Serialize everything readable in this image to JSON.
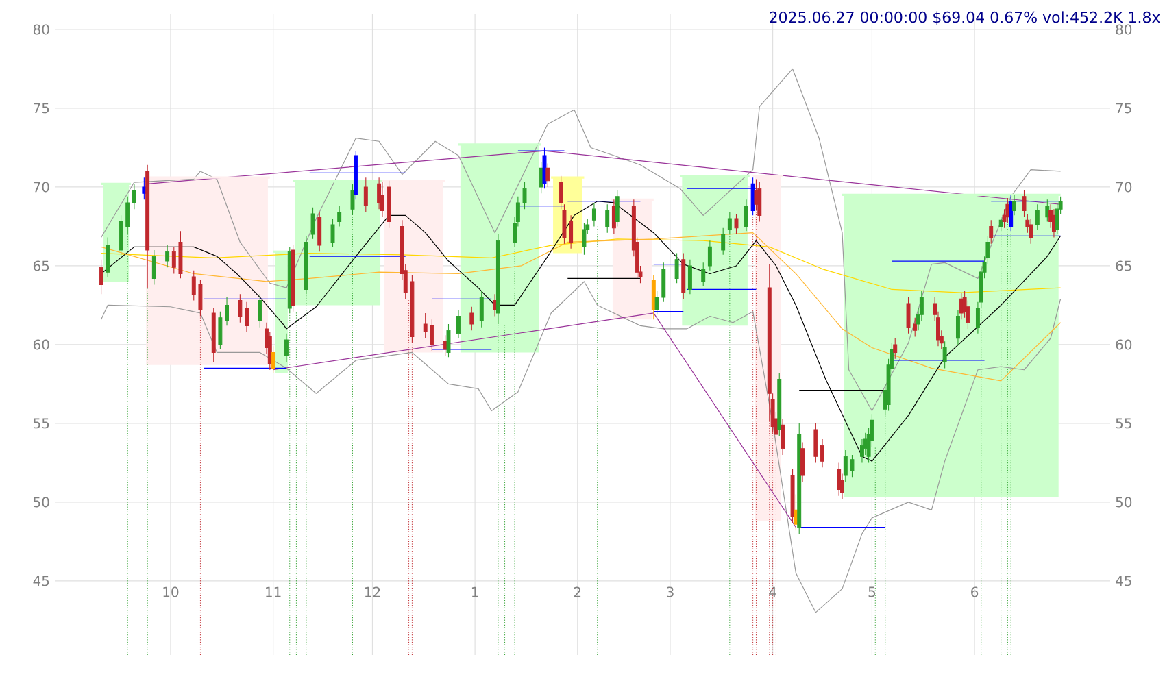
{
  "chart_data": {
    "type": "candlestick",
    "title": "2025.06.27 00:00:00 $69.04 0.67% vol:452.2K 1.8x",
    "xlim": [
      "2024-08-27",
      "2025-07-12"
    ],
    "ylim": [
      40.3,
      81
    ],
    "y2lim": [
      40.3,
      81
    ],
    "xticks": [
      {
        "value": "2024-10-01",
        "label": "10"
      },
      {
        "value": "2024-11-01",
        "label": "11"
      },
      {
        "value": "2024-12-01",
        "label": "12"
      },
      {
        "value": "2025-01-01",
        "label": "1"
      },
      {
        "value": "2025-02-01",
        "label": "2"
      },
      {
        "value": "2025-03-01",
        "label": "3"
      },
      {
        "value": "2025-04-01",
        "label": "4"
      },
      {
        "value": "2025-05-01",
        "label": "5"
      },
      {
        "value": "2025-06-01",
        "label": "6"
      }
    ],
    "yticks": [
      45,
      50,
      55,
      60,
      65,
      70,
      75,
      80
    ],
    "y2ticks": [
      45,
      50,
      55,
      60,
      65,
      70,
      75,
      80
    ],
    "grid": true,
    "x": [
      "2024-09-10",
      "2024-09-12",
      "2024-09-16",
      "2024-09-18",
      "2024-09-20",
      "2024-09-23",
      "2024-09-24",
      "2024-09-26",
      "2024-09-30",
      "2024-10-02",
      "2024-10-04",
      "2024-10-08",
      "2024-10-10",
      "2024-10-14",
      "2024-10-16",
      "2024-10-18",
      "2024-10-22",
      "2024-10-24",
      "2024-10-28",
      "2024-10-30",
      "2024-10-31",
      "2024-11-01",
      "2024-11-05",
      "2024-11-06",
      "2024-11-07",
      "2024-11-11",
      "2024-11-13",
      "2024-11-15",
      "2024-11-19",
      "2024-11-21",
      "2024-11-25",
      "2024-11-26",
      "2024-11-29",
      "2024-12-03",
      "2024-12-04",
      "2024-12-06",
      "2024-12-10",
      "2024-12-11",
      "2024-12-13",
      "2024-12-17",
      "2024-12-19",
      "2024-12-23",
      "2024-12-24",
      "2024-12-27",
      "2024-12-31",
      "2025-01-03",
      "2025-01-07",
      "2025-01-08",
      "2025-01-13",
      "2025-01-14",
      "2025-01-16",
      "2025-01-21",
      "2025-01-22",
      "2025-01-23",
      "2025-01-27",
      "2025-01-28",
      "2025-01-30",
      "2025-02-03",
      "2025-02-04",
      "2025-02-06",
      "2025-02-10",
      "2025-02-12",
      "2025-02-13",
      "2025-02-18",
      "2025-02-19",
      "2025-02-20",
      "2025-02-24",
      "2025-02-25",
      "2025-02-27",
      "2025-03-03",
      "2025-03-05",
      "2025-03-07",
      "2025-03-11",
      "2025-03-13",
      "2025-03-17",
      "2025-03-19",
      "2025-03-21",
      "2025-03-24",
      "2025-03-26",
      "2025-03-27",
      "2025-03-28",
      "2025-03-31",
      "2025-04-01",
      "2025-04-02",
      "2025-04-03",
      "2025-04-04",
      "2025-04-07",
      "2025-04-08",
      "2025-04-09",
      "2025-04-10",
      "2025-04-14",
      "2025-04-16",
      "2025-04-21",
      "2025-04-22",
      "2025-04-23",
      "2025-04-25",
      "2025-04-28",
      "2025-04-29",
      "2025-04-30",
      "2025-05-01",
      "2025-05-05",
      "2025-05-06",
      "2025-05-07",
      "2025-05-08",
      "2025-05-12",
      "2025-05-14",
      "2025-05-15",
      "2025-05-16",
      "2025-05-20",
      "2025-05-21",
      "2025-05-22",
      "2025-05-23",
      "2025-05-27",
      "2025-05-28",
      "2025-05-29",
      "2025-05-30",
      "2025-06-02",
      "2025-06-03",
      "2025-06-04",
      "2025-06-05",
      "2025-06-06",
      "2025-06-09",
      "2025-06-10",
      "2025-06-11",
      "2025-06-12",
      "2025-06-13",
      "2025-06-16",
      "2025-06-17",
      "2025-06-18",
      "2025-06-20",
      "2025-06-23",
      "2025-06-24",
      "2025-06-25",
      "2025-06-26",
      "2025-06-27"
    ],
    "ohlc": [
      [
        64.9,
        65.4,
        63.2,
        63.8
      ],
      [
        64.6,
        66.8,
        64.3,
        66.3
      ],
      [
        66.0,
        68.2,
        65.6,
        67.8
      ],
      [
        67.5,
        69.4,
        67.0,
        69.0
      ],
      [
        69.0,
        70.2,
        68.6,
        69.8
      ],
      [
        69.6,
        70.6,
        69.2,
        70.0
      ],
      [
        71.0,
        71.4,
        63.6,
        66.0
      ],
      [
        64.2,
        66.0,
        63.8,
        65.6
      ],
      [
        65.3,
        66.3,
        64.9,
        65.9
      ],
      [
        65.9,
        66.2,
        64.5,
        64.9
      ],
      [
        66.5,
        67.2,
        64.2,
        64.5
      ],
      [
        64.3,
        64.7,
        62.8,
        63.2
      ],
      [
        63.8,
        64.1,
        61.8,
        62.2
      ],
      [
        62.0,
        62.3,
        58.9,
        59.5
      ],
      [
        60.0,
        62.1,
        59.7,
        61.7
      ],
      [
        61.5,
        63.0,
        61.2,
        62.5
      ],
      [
        62.8,
        63.2,
        61.4,
        61.8
      ],
      [
        62.3,
        62.7,
        60.8,
        61.2
      ],
      [
        61.5,
        63.2,
        61.1,
        62.8
      ],
      [
        61.0,
        61.4,
        59.4,
        59.8
      ],
      [
        60.5,
        60.8,
        58.4,
        58.8
      ],
      [
        58.5,
        59.9,
        58.2,
        59.5
      ],
      [
        59.3,
        60.7,
        58.9,
        60.3
      ],
      [
        62.3,
        66.2,
        62.0,
        65.9
      ],
      [
        66.0,
        66.3,
        62.1,
        62.5
      ],
      [
        63.5,
        66.9,
        63.2,
        66.5
      ],
      [
        67.0,
        68.7,
        66.7,
        68.3
      ],
      [
        68.1,
        68.4,
        65.9,
        66.3
      ],
      [
        66.5,
        68.0,
        66.2,
        67.6
      ],
      [
        67.8,
        68.8,
        67.5,
        68.4
      ],
      [
        68.6,
        70.2,
        68.3,
        69.8
      ],
      [
        69.5,
        72.3,
        69.2,
        72.0
      ],
      [
        70.0,
        70.6,
        68.4,
        68.8
      ],
      [
        70.2,
        70.6,
        68.6,
        69.0
      ],
      [
        69.5,
        70.3,
        68.1,
        68.5
      ],
      [
        70.0,
        70.4,
        67.4,
        67.8
      ],
      [
        67.5,
        67.9,
        64.1,
        64.5
      ],
      [
        64.7,
        65.1,
        62.9,
        63.3
      ],
      [
        64.0,
        64.4,
        60.1,
        60.5
      ],
      [
        61.3,
        62.0,
        60.4,
        60.8
      ],
      [
        61.2,
        61.6,
        59.6,
        60.0
      ],
      [
        60.2,
        60.6,
        59.3,
        59.7
      ],
      [
        59.5,
        61.3,
        59.2,
        60.9
      ],
      [
        60.7,
        62.2,
        60.4,
        61.8
      ],
      [
        62.0,
        62.4,
        60.9,
        61.3
      ],
      [
        61.5,
        63.4,
        61.1,
        63.0
      ],
      [
        62.8,
        63.2,
        61.8,
        62.2
      ],
      [
        62.0,
        67.0,
        61.3,
        66.6
      ],
      [
        66.5,
        68.1,
        66.2,
        67.7
      ],
      [
        67.8,
        69.4,
        67.5,
        69.0
      ],
      [
        69.0,
        70.3,
        68.6,
        69.9
      ],
      [
        70.0,
        71.6,
        69.6,
        71.2
      ],
      [
        70.2,
        72.5,
        69.9,
        72.0
      ],
      [
        71.2,
        71.5,
        70.0,
        70.4
      ],
      [
        70.3,
        70.7,
        68.6,
        69.0
      ],
      [
        68.5,
        68.9,
        66.4,
        66.8
      ],
      [
        67.8,
        68.2,
        66.1,
        66.5
      ],
      [
        66.2,
        67.7,
        65.7,
        67.3
      ],
      [
        67.3,
        68.0,
        67.0,
        67.6
      ],
      [
        67.9,
        69.0,
        67.5,
        68.6
      ],
      [
        67.5,
        68.9,
        67.1,
        68.5
      ],
      [
        68.8,
        69.2,
        67.0,
        67.4
      ],
      [
        67.8,
        69.8,
        67.5,
        69.4
      ],
      [
        68.8,
        69.2,
        65.6,
        66.0
      ],
      [
        66.5,
        66.8,
        64.2,
        64.6
      ],
      [
        64.6,
        65.0,
        63.9,
        64.3
      ],
      [
        64.1,
        64.4,
        61.6,
        62.2
      ],
      [
        62.2,
        63.4,
        61.9,
        63.0
      ],
      [
        63.0,
        65.2,
        62.7,
        64.8
      ],
      [
        64.2,
        65.8,
        63.9,
        65.4
      ],
      [
        65.4,
        65.8,
        62.9,
        63.3
      ],
      [
        63.5,
        65.4,
        63.2,
        65.0
      ],
      [
        64.0,
        65.2,
        63.7,
        64.8
      ],
      [
        65.0,
        66.6,
        64.7,
        66.2
      ],
      [
        66.0,
        67.4,
        65.7,
        67.0
      ],
      [
        67.3,
        68.4,
        67.0,
        68.0
      ],
      [
        68.0,
        68.3,
        67.0,
        67.4
      ],
      [
        67.5,
        69.2,
        67.2,
        68.8
      ],
      [
        68.5,
        70.6,
        68.2,
        70.2
      ],
      [
        69.8,
        70.5,
        68.5,
        68.9
      ],
      [
        69.9,
        70.3,
        67.8,
        68.2
      ],
      [
        63.6,
        65.1,
        55.1,
        56.9
      ],
      [
        56.5,
        56.9,
        54.4,
        54.8
      ],
      [
        55.3,
        55.7,
        53.9,
        54.3
      ],
      [
        54.6,
        58.2,
        54.2,
        57.8
      ],
      [
        54.9,
        55.3,
        53.0,
        53.4
      ],
      [
        51.7,
        52.1,
        48.7,
        49.1
      ],
      [
        49.5,
        50.5,
        48.2,
        48.6
      ],
      [
        48.4,
        55.0,
        48.0,
        54.3
      ],
      [
        53.4,
        53.8,
        51.3,
        51.7
      ],
      [
        54.6,
        55.0,
        52.5,
        52.9
      ],
      [
        53.6,
        54.0,
        52.2,
        52.6
      ],
      [
        52.1,
        52.5,
        50.4,
        50.8
      ],
      [
        51.4,
        51.8,
        50.2,
        50.6
      ],
      [
        51.7,
        53.3,
        51.3,
        52.9
      ],
      [
        52.0,
        53.0,
        51.6,
        52.7
      ],
      [
        52.9,
        54.0,
        52.5,
        53.6
      ],
      [
        53.4,
        54.4,
        53.0,
        54.0
      ],
      [
        52.9,
        54.7,
        52.5,
        54.3
      ],
      [
        53.9,
        55.6,
        53.5,
        55.2
      ],
      [
        55.9,
        57.5,
        55.5,
        57.1
      ],
      [
        56.2,
        59.1,
        55.8,
        58.7
      ],
      [
        58.5,
        60.1,
        58.1,
        59.7
      ],
      [
        60.0,
        60.4,
        59.1,
        59.5
      ],
      [
        62.6,
        63.0,
        60.7,
        61.1
      ],
      [
        61.3,
        61.7,
        60.5,
        60.9
      ],
      [
        61.3,
        62.3,
        60.9,
        61.9
      ],
      [
        61.9,
        63.4,
        61.5,
        63.0
      ],
      [
        62.6,
        63.0,
        61.5,
        61.9
      ],
      [
        61.7,
        62.1,
        59.9,
        60.3
      ],
      [
        60.5,
        60.9,
        59.7,
        60.1
      ],
      [
        58.9,
        60.2,
        58.5,
        59.8
      ],
      [
        60.4,
        62.2,
        60.0,
        61.8
      ],
      [
        62.9,
        63.3,
        61.6,
        62.0
      ],
      [
        63.0,
        63.4,
        61.7,
        62.1
      ],
      [
        62.4,
        62.8,
        61.0,
        61.4
      ],
      [
        61.1,
        62.7,
        60.7,
        62.3
      ],
      [
        62.7,
        65.0,
        62.3,
        64.6
      ],
      [
        64.6,
        65.6,
        64.2,
        65.2
      ],
      [
        65.5,
        66.9,
        65.1,
        66.5
      ],
      [
        67.5,
        67.9,
        66.4,
        66.8
      ],
      [
        67.5,
        68.1,
        67.2,
        67.9
      ],
      [
        68.2,
        68.6,
        67.4,
        67.8
      ],
      [
        68.9,
        69.3,
        67.7,
        68.1
      ],
      [
        67.5,
        69.5,
        67.2,
        69.1
      ],
      [
        68.5,
        69.5,
        68.2,
        69.1
      ],
      [
        69.4,
        69.8,
        68.1,
        68.5
      ],
      [
        67.9,
        68.3,
        67.1,
        67.5
      ],
      [
        67.6,
        68.0,
        66.4,
        66.8
      ],
      [
        67.6,
        68.9,
        67.3,
        68.5
      ],
      [
        68.1,
        69.2,
        67.8,
        68.8
      ],
      [
        68.5,
        68.9,
        67.4,
        67.8
      ],
      [
        68.2,
        68.6,
        66.8,
        67.2
      ],
      [
        67.3,
        69.0,
        67.0,
        68.6
      ],
      [
        68.6,
        69.4,
        68.3,
        69.1
      ]
    ],
    "colors": [
      "#c0282d",
      "#2ca02c",
      "#2ca02c",
      "#2ca02c",
      "#2ca02c",
      "#0000ff",
      "#c0282d",
      "#2ca02c",
      "#2ca02c",
      "#c0282d",
      "#c0282d",
      "#c0282d",
      "#c0282d",
      "#c0282d",
      "#2ca02c",
      "#2ca02c",
      "#c0282d",
      "#c0282d",
      "#2ca02c",
      "#c0282d",
      "#c0282d",
      "#ffa500",
      "#2ca02c",
      "#2ca02c",
      "#c0282d",
      "#2ca02c",
      "#2ca02c",
      "#c0282d",
      "#2ca02c",
      "#2ca02c",
      "#2ca02c",
      "#0000ff",
      "#c0282d",
      "#c0282d",
      "#c0282d",
      "#c0282d",
      "#c0282d",
      "#c0282d",
      "#c0282d",
      "#c0282d",
      "#c0282d",
      "#c0282d",
      "#2ca02c",
      "#2ca02c",
      "#c0282d",
      "#2ca02c",
      "#c0282d",
      "#2ca02c",
      "#2ca02c",
      "#2ca02c",
      "#2ca02c",
      "#2ca02c",
      "#0000ff",
      "#c0282d",
      "#c0282d",
      "#c0282d",
      "#c0282d",
      "#2ca02c",
      "#2ca02c",
      "#2ca02c",
      "#2ca02c",
      "#c0282d",
      "#2ca02c",
      "#c0282d",
      "#c0282d",
      "#c0282d",
      "#ffa500",
      "#2ca02c",
      "#2ca02c",
      "#2ca02c",
      "#c0282d",
      "#2ca02c",
      "#2ca02c",
      "#2ca02c",
      "#2ca02c",
      "#2ca02c",
      "#c0282d",
      "#2ca02c",
      "#0000ff",
      "#c0282d",
      "#c0282d",
      "#c0282d",
      "#c0282d",
      "#c0282d",
      "#2ca02c",
      "#c0282d",
      "#c0282d",
      "#ffa500",
      "#2ca02c",
      "#c0282d",
      "#c0282d",
      "#c0282d",
      "#c0282d",
      "#c0282d",
      "#2ca02c",
      "#2ca02c",
      "#2ca02c",
      "#2ca02c",
      "#2ca02c",
      "#2ca02c",
      "#2ca02c",
      "#2ca02c",
      "#2ca02c",
      "#c0282d",
      "#c0282d",
      "#c0282d",
      "#2ca02c",
      "#2ca02c",
      "#c0282d",
      "#c0282d",
      "#c0282d",
      "#2ca02c",
      "#2ca02c",
      "#c0282d",
      "#c0282d",
      "#c0282d",
      "#2ca02c",
      "#2ca02c",
      "#2ca02c",
      "#2ca02c",
      "#c0282d",
      "#2ca02c",
      "#c0282d",
      "#c0282d",
      "#0000ff",
      "#2ca02c",
      "#c0282d",
      "#c0282d",
      "#c0282d",
      "#2ca02c",
      "#2ca02c",
      "#c0282d",
      "#c0282d",
      "#2ca02c",
      "#2ca02c"
    ],
    "series": [
      {
        "type": "line",
        "color": "#ccffcc",
        "x": [
          "2024-09-10",
          "2024-09-19"
        ],
        "values": [
          70.2,
          70.2
        ],
        "lower": [
          64.0,
          64.0
        ],
        "upper": [
          70.2,
          70.2
        ]
      },
      {
        "type": "line",
        "color": "#ffeeee",
        "x": [
          "2024-09-23",
          "2024-10-31"
        ],
        "values": [
          70.6,
          70.6
        ],
        "lower": [
          58.7,
          58.7
        ],
        "upper": [
          70.6,
          70.6
        ]
      },
      {
        "type": "line",
        "color": "#ccffcc",
        "x": [
          "2024-11-01",
          "2024-11-06"
        ],
        "values": [
          65.9,
          65.9
        ],
        "lower": [
          58.2,
          58.2
        ],
        "upper": [
          65.9,
          65.9
        ]
      },
      {
        "type": "line",
        "color": "#ccffcc",
        "x": [
          "2024-11-07",
          "2024-12-04"
        ],
        "values": [
          70.4,
          70.4
        ],
        "lower": [
          62.5,
          62.5
        ],
        "upper": [
          70.4,
          70.4
        ]
      },
      {
        "type": "line",
        "color": "#ffeeee",
        "x": [
          "2024-12-04",
          "2024-12-23"
        ],
        "values": [
          70.4,
          70.4
        ],
        "lower": [
          59.5,
          59.5
        ],
        "upper": [
          70.4,
          70.4
        ]
      },
      {
        "type": "line",
        "color": "#ccffcc",
        "x": [
          "2024-12-27",
          "2025-01-21"
        ],
        "values": [
          72.7,
          72.7
        ],
        "lower": [
          59.5,
          59.5
        ],
        "upper": [
          72.7,
          72.7
        ]
      },
      {
        "type": "line",
        "color": "#ffff99",
        "x": [
          "2025-01-24",
          "2025-02-03"
        ],
        "values": [
          70.6,
          70.6
        ],
        "lower": [
          65.8,
          65.8
        ],
        "upper": [
          70.6,
          70.6
        ]
      },
      {
        "type": "line",
        "color": "#ffeeee",
        "x": [
          "2025-02-11",
          "2025-02-24"
        ],
        "values": [
          69.2,
          69.2
        ],
        "lower": [
          61.6,
          61.6
        ],
        "upper": [
          69.2,
          69.2
        ]
      },
      {
        "type": "line",
        "color": "#ccffcc",
        "x": [
          "2025-03-04",
          "2025-03-25"
        ],
        "values": [
          70.7,
          70.7
        ],
        "lower": [
          61.2,
          61.2
        ],
        "upper": [
          70.7,
          70.7
        ]
      },
      {
        "type": "line",
        "color": "#ffeeee",
        "x": [
          "2025-03-26",
          "2025-04-04"
        ],
        "values": [
          70.7,
          70.7
        ],
        "lower": [
          48.8,
          48.8
        ],
        "upper": [
          70.7,
          70.7
        ]
      },
      {
        "type": "line",
        "color": "#ccffcc",
        "x": [
          "2025-04-22",
          "2025-06-27"
        ],
        "values": [
          69.5,
          69.5
        ],
        "lower": [
          50.3,
          50.3
        ],
        "upper": [
          69.5,
          69.5
        ]
      },
      {
        "type": "line",
        "color": "#999999",
        "x": [
          "2024-09-10",
          "2024-09-20",
          "2024-10-08",
          "2024-10-10",
          "2024-10-15",
          "2024-10-22",
          "2024-10-31",
          "2024-11-05",
          "2024-11-14",
          "2024-11-26",
          "2024-12-03",
          "2024-12-10",
          "2024-12-20",
          "2024-12-27",
          "2025-01-07",
          "2025-01-23",
          "2025-01-31",
          "2025-02-05",
          "2025-02-12",
          "2025-02-20",
          "2025-03-04",
          "2025-03-11",
          "2025-03-26",
          "2025-03-28",
          "2025-04-07",
          "2025-04-15",
          "2025-04-22",
          "2025-04-24",
          "2025-05-01",
          "2025-05-12",
          "2025-05-19",
          "2025-05-23",
          "2025-06-02",
          "2025-06-12",
          "2025-06-18",
          "2025-06-27"
        ],
        "values": [
          66.8,
          70.3,
          70.5,
          71.0,
          70.5,
          66.5,
          63.9,
          63.6,
          68.0,
          73.1,
          72.9,
          70.8,
          72.9,
          72.0,
          67.1,
          74.0,
          74.9,
          72.5,
          72.0,
          71.4,
          69.9,
          68.2,
          71.1,
          75.1,
          77.5,
          73.1,
          67.1,
          58.4,
          55.8,
          60.1,
          65.1,
          65.2,
          64.2,
          69.4,
          71.1,
          71.0
        ]
      },
      {
        "type": "line",
        "color": "#999999",
        "x": [
          "2024-09-10",
          "2024-09-12",
          "2024-10-01",
          "2024-10-10",
          "2024-10-15",
          "2024-10-28",
          "2024-11-01",
          "2024-11-05",
          "2024-11-14",
          "2024-11-26",
          "2024-12-13",
          "2024-12-24",
          "2025-01-02",
          "2025-01-06",
          "2025-01-14",
          "2025-01-24",
          "2025-02-03",
          "2025-02-07",
          "2025-02-20",
          "2025-02-27",
          "2025-03-06",
          "2025-03-13",
          "2025-03-20",
          "2025-03-26",
          "2025-04-01",
          "2025-04-08",
          "2025-04-14",
          "2025-04-22",
          "2025-04-28",
          "2025-05-01",
          "2025-05-12",
          "2025-05-19",
          "2025-05-23",
          "2025-06-02",
          "2025-06-09",
          "2025-06-16",
          "2025-06-24",
          "2025-06-27"
        ],
        "values": [
          61.6,
          62.5,
          62.4,
          62.0,
          59.5,
          59.5,
          59.0,
          58.5,
          56.9,
          59.0,
          59.5,
          57.5,
          57.2,
          55.8,
          57.0,
          62.0,
          64.0,
          62.5,
          61.2,
          61.0,
          61.0,
          61.8,
          61.4,
          62.1,
          55.0,
          45.5,
          43.0,
          44.5,
          48.0,
          49.0,
          50.0,
          49.5,
          52.6,
          58.4,
          58.6,
          58.4,
          60.4,
          62.9
        ]
      },
      {
        "type": "line",
        "color": "#ffd700",
        "x": [
          "2024-09-10",
          "2024-10-14",
          "2024-11-12",
          "2024-12-10",
          "2025-01-06",
          "2025-01-24",
          "2025-02-13",
          "2025-03-11",
          "2025-03-31",
          "2025-04-16",
          "2025-05-07",
          "2025-05-28",
          "2025-06-27"
        ],
        "values": [
          65.8,
          65.5,
          65.8,
          65.7,
          65.5,
          66.3,
          66.7,
          66.6,
          66.2,
          64.8,
          63.5,
          63.3,
          63.6
        ]
      },
      {
        "type": "line",
        "color": "#ffb733",
        "x": [
          "2024-09-10",
          "2024-10-08",
          "2024-10-30",
          "2024-11-12",
          "2024-12-03",
          "2024-12-27",
          "2025-01-15",
          "2025-01-29",
          "2025-02-24",
          "2025-03-26",
          "2025-04-08",
          "2025-04-22",
          "2025-05-01",
          "2025-05-19",
          "2025-06-09",
          "2025-06-27"
        ],
        "values": [
          66.2,
          64.5,
          64.0,
          64.2,
          64.6,
          64.5,
          65.0,
          66.5,
          66.7,
          67.1,
          64.5,
          61.0,
          59.8,
          58.5,
          57.7,
          61.4
        ]
      },
      {
        "type": "line",
        "color": "#000000",
        "x": [
          "2024-09-10",
          "2024-09-20",
          "2024-10-08",
          "2024-10-15",
          "2024-10-21",
          "2024-10-28",
          "2024-11-04",
          "2024-11-05",
          "2024-11-14",
          "2024-11-26",
          "2024-12-06",
          "2024-12-11",
          "2024-12-17",
          "2024-12-24",
          "2025-01-02",
          "2025-01-07",
          "2025-01-13",
          "2025-01-23",
          "2025-01-31",
          "2025-02-07",
          "2025-02-12",
          "2025-02-24",
          "2025-03-05",
          "2025-03-13",
          "2025-03-21",
          "2025-03-27",
          "2025-04-02",
          "2025-04-08",
          "2025-04-17",
          "2025-04-28",
          "2025-05-01",
          "2025-05-12",
          "2025-05-23",
          "2025-06-09",
          "2025-06-23",
          "2025-06-27"
        ],
        "values": [
          64.5,
          66.2,
          66.2,
          65.6,
          64.5,
          63.0,
          61.3,
          61.0,
          62.4,
          65.6,
          68.2,
          68.2,
          67.1,
          65.3,
          63.6,
          62.5,
          62.5,
          65.6,
          68.2,
          69.1,
          69.0,
          67.1,
          65.1,
          64.5,
          65.0,
          66.6,
          65.0,
          62.5,
          57.8,
          52.9,
          52.6,
          55.5,
          59.2,
          62.5,
          65.6,
          66.9
        ]
      },
      {
        "type": "line",
        "color": "#993399",
        "x": [
          "2024-09-24",
          "2025-01-22",
          "2025-06-27"
        ],
        "values": [
          70.2,
          72.3,
          68.9
        ]
      },
      {
        "type": "line",
        "color": "#993399",
        "x": [
          "2024-11-01",
          "2025-02-24",
          "2025-04-08"
        ],
        "values": [
          58.4,
          62.0,
          48.4
        ]
      },
      {
        "type": "line",
        "color": "#0000ff",
        "x": [
          "2024-10-11",
          "2024-11-05"
        ],
        "values": [
          62.9,
          62.9
        ]
      },
      {
        "type": "line",
        "color": "#0000ff",
        "x": [
          "2024-10-11",
          "2024-11-05"
        ],
        "values": [
          58.5,
          58.5
        ]
      },
      {
        "type": "line",
        "color": "#0000ff",
        "x": [
          "2024-11-12",
          "2024-12-11"
        ],
        "values": [
          70.9,
          70.9
        ]
      },
      {
        "type": "line",
        "color": "#0000ff",
        "x": [
          "2024-11-12",
          "2024-12-11"
        ],
        "values": [
          65.6,
          65.6
        ]
      },
      {
        "type": "line",
        "color": "#0000ff",
        "x": [
          "2024-12-19",
          "2025-01-06"
        ],
        "values": [
          62.9,
          62.9
        ]
      },
      {
        "type": "line",
        "color": "#0000ff",
        "x": [
          "2024-12-19",
          "2025-01-06"
        ],
        "values": [
          59.7,
          59.7
        ]
      },
      {
        "type": "line",
        "color": "#0000ff",
        "x": [
          "2025-01-14",
          "2025-01-28"
        ],
        "values": [
          72.3,
          72.3
        ]
      },
      {
        "type": "line",
        "color": "#0000ff",
        "x": [
          "2025-01-14",
          "2025-01-28"
        ],
        "values": [
          68.8,
          68.8
        ]
      },
      {
        "type": "line",
        "color": "#0000ff",
        "x": [
          "2025-01-29",
          "2025-02-20"
        ],
        "values": [
          69.1,
          69.1
        ]
      },
      {
        "type": "line",
        "color": "#000000",
        "x": [
          "2025-01-29",
          "2025-02-20"
        ],
        "values": [
          64.2,
          64.2
        ]
      },
      {
        "type": "line",
        "color": "#0000ff",
        "x": [
          "2025-02-24",
          "2025-03-05"
        ],
        "values": [
          65.1,
          65.1
        ]
      },
      {
        "type": "line",
        "color": "#0000ff",
        "x": [
          "2025-02-24",
          "2025-03-05"
        ],
        "values": [
          62.1,
          62.1
        ]
      },
      {
        "type": "line",
        "color": "#0000ff",
        "x": [
          "2025-03-06",
          "2025-03-27"
        ],
        "values": [
          69.9,
          69.9
        ]
      },
      {
        "type": "line",
        "color": "#0000ff",
        "x": [
          "2025-03-06",
          "2025-03-27"
        ],
        "values": [
          63.5,
          63.5
        ]
      },
      {
        "type": "line",
        "color": "#000000",
        "x": [
          "2025-04-09",
          "2025-05-05"
        ],
        "values": [
          57.1,
          57.1
        ]
      },
      {
        "type": "line",
        "color": "#0000ff",
        "x": [
          "2025-04-09",
          "2025-05-05"
        ],
        "values": [
          48.4,
          48.4
        ]
      },
      {
        "type": "line",
        "color": "#0000ff",
        "x": [
          "2025-05-07",
          "2025-06-04"
        ],
        "values": [
          65.3,
          65.3
        ]
      },
      {
        "type": "line",
        "color": "#0000ff",
        "x": [
          "2025-05-07",
          "2025-06-04"
        ],
        "values": [
          59.0,
          59.0
        ]
      },
      {
        "type": "line",
        "color": "#0000ff",
        "x": [
          "2025-06-06",
          "2025-06-27"
        ],
        "values": [
          69.1,
          69.1
        ]
      },
      {
        "type": "line",
        "color": "#0000ff",
        "x": [
          "2025-06-06",
          "2025-06-27"
        ],
        "values": [
          66.9,
          66.9
        ]
      }
    ],
    "ref_lines": [
      {
        "axis": "x",
        "value": "2024-09-18",
        "color": "#2ca02c",
        "line_style": "dotted"
      },
      {
        "axis": "x",
        "value": "2024-09-24",
        "color": "#2ca02c",
        "line_style": "dotted"
      },
      {
        "axis": "x",
        "value": "2024-10-10",
        "color": "#c0282d",
        "line_style": "dotted"
      },
      {
        "axis": "x",
        "value": "2024-11-06",
        "color": "#2ca02c",
        "line_style": "dotted"
      },
      {
        "axis": "x",
        "value": "2024-11-08",
        "color": "#2ca02c",
        "line_style": "dotted"
      },
      {
        "axis": "x",
        "value": "2024-11-11",
        "color": "#2ca02c",
        "line_style": "dotted"
      },
      {
        "axis": "x",
        "value": "2024-11-25",
        "color": "#2ca02c",
        "line_style": "dotted"
      },
      {
        "axis": "x",
        "value": "2024-12-12",
        "color": "#c0282d",
        "line_style": "dotted"
      },
      {
        "axis": "x",
        "value": "2024-12-13",
        "color": "#c0282d",
        "line_style": "dotted"
      },
      {
        "axis": "x",
        "value": "2025-01-08",
        "color": "#2ca02c",
        "line_style": "dotted"
      },
      {
        "axis": "x",
        "value": "2025-01-10",
        "color": "#2ca02c",
        "line_style": "dotted"
      },
      {
        "axis": "x",
        "value": "2025-01-13",
        "color": "#2ca02c",
        "line_style": "dotted"
      },
      {
        "axis": "x",
        "value": "2025-02-07",
        "color": "#2ca02c",
        "line_style": "dotted"
      },
      {
        "axis": "x",
        "value": "2025-03-19",
        "color": "#2ca02c",
        "line_style": "dotted"
      },
      {
        "axis": "x",
        "value": "2025-03-26",
        "color": "#c0282d",
        "line_style": "dotted"
      },
      {
        "axis": "x",
        "value": "2025-03-27",
        "color": "#c0282d",
        "line_style": "dotted"
      },
      {
        "axis": "x",
        "value": "2025-03-31",
        "color": "#c0282d",
        "line_style": "dotted"
      },
      {
        "axis": "x",
        "value": "2025-04-01",
        "color": "#c0282d",
        "line_style": "dotted"
      },
      {
        "axis": "x",
        "value": "2025-04-02",
        "color": "#c0282d",
        "line_style": "dotted"
      },
      {
        "axis": "x",
        "value": "2025-05-02",
        "color": "#2ca02c",
        "line_style": "dotted"
      },
      {
        "axis": "x",
        "value": "2025-05-05",
        "color": "#2ca02c",
        "line_style": "dotted"
      },
      {
        "axis": "x",
        "value": "2025-06-03",
        "color": "#2ca02c",
        "line_style": "dotted"
      },
      {
        "axis": "x",
        "value": "2025-06-09",
        "color": "#2ca02c",
        "line_style": "dotted"
      },
      {
        "axis": "x",
        "value": "2025-06-11",
        "color": "#2ca02c",
        "line_style": "dotted"
      },
      {
        "axis": "x",
        "value": "2025-06-12",
        "color": "#2ca02c",
        "line_style": "dotted"
      }
    ]
  }
}
